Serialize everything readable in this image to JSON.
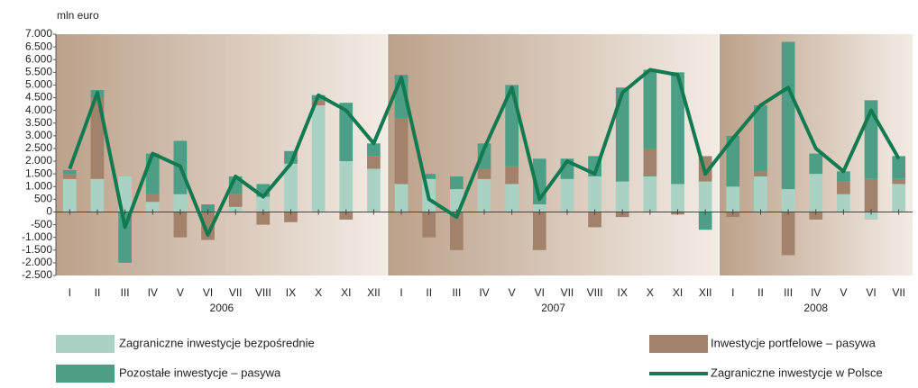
{
  "chart_data": {
    "type": "bar",
    "y_label": "mln euro",
    "categories": [
      "I",
      "II",
      "III",
      "IV",
      "V",
      "VI",
      "VII",
      "VIII",
      "IX",
      "X",
      "XI",
      "XII",
      "I",
      "II",
      "III",
      "IV",
      "V",
      "VI",
      "VII",
      "VIII",
      "IX",
      "X",
      "XI",
      "XII",
      "I",
      "II",
      "III",
      "IV",
      "V",
      "VI",
      "VII"
    ],
    "groups": [
      {
        "name": "2006",
        "start": 0,
        "end": 11
      },
      {
        "name": "2007",
        "start": 12,
        "end": 23
      },
      {
        "name": "2008",
        "start": 24,
        "end": 30
      }
    ],
    "stacked": true,
    "series": [
      {
        "name": "Zagraniczne inwestycje bezpośrednie",
        "color": "#a9d2c4",
        "values": [
          1300,
          1300,
          1400,
          400,
          700,
          0,
          200,
          600,
          1900,
          4200,
          2000,
          1700,
          1100,
          1300,
          900,
          1300,
          1100,
          300,
          1300,
          1400,
          1200,
          1400,
          1100,
          1200,
          1000,
          1400,
          900,
          1500,
          700,
          -300,
          1100
        ]
      },
      {
        "name": "Inwestycje portfelowe – pasywa",
        "color": "#a2826a",
        "values": [
          200,
          3200,
          0,
          300,
          -1000,
          -1100,
          500,
          -500,
          -400,
          200,
          -300,
          500,
          2600,
          -1000,
          -1500,
          400,
          700,
          -1500,
          0,
          -600,
          -200,
          1100,
          -100,
          1000,
          -200,
          200,
          -1700,
          -300,
          500,
          1300,
          200
        ]
      },
      {
        "name": "Pozostałe inwestycje – pasywa",
        "color": "#4d9e86",
        "values": [
          150,
          300,
          -2000,
          1600,
          2100,
          300,
          700,
          500,
          500,
          200,
          2300,
          500,
          1700,
          200,
          500,
          1000,
          3200,
          1800,
          800,
          800,
          3700,
          3100,
          4400,
          -700,
          2000,
          2600,
          5800,
          800,
          400,
          3100,
          900
        ]
      },
      {
        "name": "Zagraniczne inwestycje w Polsce",
        "color": "#117a50",
        "type": "line",
        "values": [
          1700,
          4700,
          -600,
          2300,
          1800,
          -900,
          1400,
          600,
          1900,
          4600,
          4000,
          2700,
          5300,
          500,
          -200,
          2500,
          4900,
          500,
          2000,
          1500,
          4700,
          5600,
          5400,
          1500,
          2900,
          4200,
          4900,
          2500,
          1600,
          4000,
          2100
        ]
      }
    ],
    "ylim": [
      -2500,
      7000
    ],
    "yticks": [
      {
        "value": 7000,
        "label": "7.000"
      },
      {
        "value": 6500,
        "label": "6.500"
      },
      {
        "value": 6000,
        "label": "6.000"
      },
      {
        "value": 5500,
        "label": "5.500"
      },
      {
        "value": 5000,
        "label": "5.000"
      },
      {
        "value": 4500,
        "label": "4.500"
      },
      {
        "value": 4000,
        "label": "4.000"
      },
      {
        "value": 3500,
        "label": "3.500"
      },
      {
        "value": 3000,
        "label": "3.000"
      },
      {
        "value": 2500,
        "label": "2.500"
      },
      {
        "value": 2000,
        "label": "2.000"
      },
      {
        "value": 1500,
        "label": "1.500"
      },
      {
        "value": 1000,
        "label": "1.000"
      },
      {
        "value": 500,
        "label": "500"
      },
      {
        "value": 0,
        "label": "0"
      },
      {
        "value": -500,
        "label": "-500"
      },
      {
        "value": -1000,
        "label": "-1.000"
      },
      {
        "value": -1500,
        "label": "-1.500"
      },
      {
        "value": -2000,
        "label": "-2.000"
      },
      {
        "value": -2500,
        "label": "-2.500"
      }
    ]
  }
}
